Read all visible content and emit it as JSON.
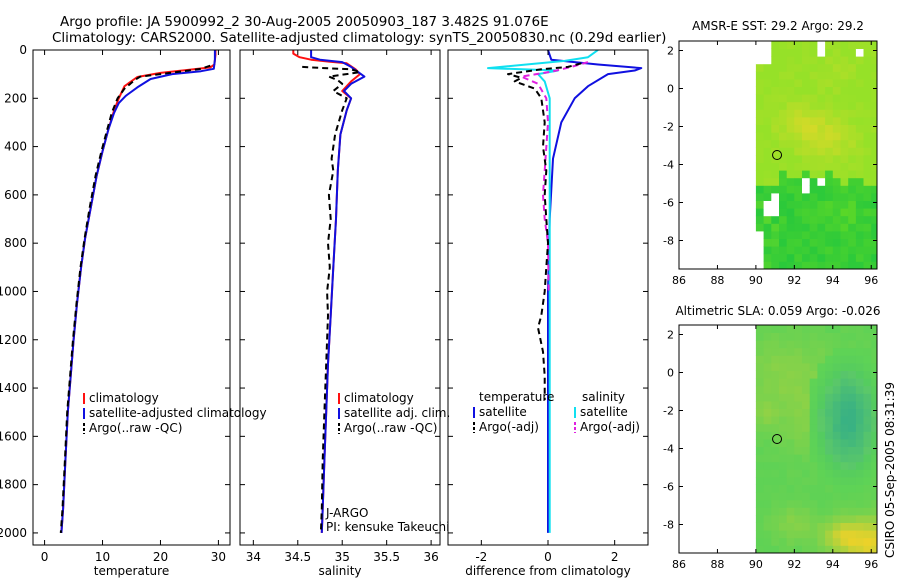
{
  "header": {
    "title_line1": "Argo profile: JA 5900992_2 30-Aug-2005 20050903_187 3.482S 91.076E",
    "title_line2": "Climatology: CARS2000. Satellite-adjusted climatology: synTS_20050830.nc (0.29d earlier)"
  },
  "footer": {
    "credit": "CSIRO 05-Sep-2005 08:31:39"
  },
  "colors": {
    "red": "#ff1010",
    "blue": "#1010e0",
    "black": "#000000",
    "cyan": "#10e0f0",
    "magenta": "#e020e0"
  },
  "chart_data": [
    {
      "id": "temperature",
      "type": "line",
      "xlabel": "temperature",
      "xlim": [
        -2,
        32
      ],
      "ylim": [
        2050,
        0
      ],
      "xticks": [
        0,
        10,
        20,
        30
      ],
      "yticks": [
        0,
        200,
        400,
        600,
        800,
        1000,
        1200,
        1400,
        1600,
        1800,
        2000
      ],
      "legend": [
        "climatology",
        "satellite-adjusted climatology",
        "Argo(..raw -QC)"
      ],
      "series": [
        {
          "name": "climatology",
          "color": "#ff1010",
          "dash": false,
          "points": [
            [
              29.5,
              0
            ],
            [
              29.5,
              20
            ],
            [
              29.3,
              60
            ],
            [
              28.6,
              72
            ],
            [
              25,
              82
            ],
            [
              20,
              95
            ],
            [
              16,
              112
            ],
            [
              13.8,
              150
            ],
            [
              12.8,
              200
            ],
            [
              12.0,
              250
            ],
            [
              11.0,
              330
            ],
            [
              10.0,
              420
            ],
            [
              9.0,
              520
            ],
            [
              8.0,
              650
            ],
            [
              7.0,
              780
            ],
            [
              6.3,
              900
            ],
            [
              5.6,
              1050
            ],
            [
              5.0,
              1200
            ],
            [
              4.5,
              1350
            ],
            [
              4.0,
              1500
            ],
            [
              3.6,
              1700
            ],
            [
              3.2,
              1900
            ],
            [
              2.9,
              2000
            ]
          ]
        },
        {
          "name": "satellite-adjusted climatology",
          "color": "#1010e0",
          "dash": false,
          "points": [
            [
              29.4,
              0
            ],
            [
              29.4,
              40
            ],
            [
              29.2,
              78
            ],
            [
              27,
              88
            ],
            [
              22,
              100
            ],
            [
              18.3,
              120
            ],
            [
              16.0,
              155
            ],
            [
              14.0,
              190
            ],
            [
              12.8,
              220
            ],
            [
              12.0,
              260
            ],
            [
              11.0,
              330
            ],
            [
              10.0,
              420
            ],
            [
              9.0,
              520
            ],
            [
              8.0,
              650
            ],
            [
              7.0,
              780
            ],
            [
              6.3,
              900
            ],
            [
              5.6,
              1050
            ],
            [
              5.0,
              1200
            ],
            [
              4.5,
              1350
            ],
            [
              4.0,
              1500
            ],
            [
              3.6,
              1700
            ],
            [
              3.2,
              1900
            ],
            [
              2.9,
              2000
            ]
          ]
        },
        {
          "name": "Argo(..raw -QC)",
          "color": "#000000",
          "dash": true,
          "points": [
            [
              28.6,
              65
            ],
            [
              27,
              78
            ],
            [
              24,
              88
            ],
            [
              20,
              100
            ],
            [
              16.5,
              110
            ],
            [
              15.5,
              125
            ],
            [
              14.8,
              140
            ],
            [
              13.8,
              160
            ],
            [
              12.6,
              200
            ],
            [
              11.6,
              260
            ],
            [
              10.8,
              330
            ],
            [
              9.8,
              420
            ],
            [
              8.8,
              520
            ],
            [
              7.8,
              650
            ],
            [
              6.9,
              780
            ],
            [
              6.2,
              900
            ],
            [
              5.5,
              1050
            ],
            [
              4.9,
              1200
            ],
            [
              4.4,
              1350
            ],
            [
              3.9,
              1500
            ],
            [
              3.5,
              1700
            ],
            [
              3.1,
              1900
            ],
            [
              2.8,
              2000
            ]
          ]
        }
      ]
    },
    {
      "id": "salinity",
      "type": "line",
      "xlabel": "salinity",
      "xlim": [
        33.85,
        36.1
      ],
      "ylim": [
        2050,
        0
      ],
      "xticks": [
        34,
        34.5,
        35,
        35.5,
        36
      ],
      "legend": [
        "climatology",
        "satellite adj. clim.",
        "Argo(..raw -QC)"
      ],
      "annotation": [
        "J-ARGO",
        "PI: kensuke Takeuchi"
      ],
      "series": [
        {
          "name": "climatology",
          "color": "#ff1010",
          "dash": false,
          "points": [
            [
              34.45,
              0
            ],
            [
              34.45,
              15
            ],
            [
              34.52,
              30
            ],
            [
              34.65,
              40
            ],
            [
              34.85,
              48
            ],
            [
              35.05,
              55
            ],
            [
              35.15,
              80
            ],
            [
              35.2,
              100
            ],
            [
              35.1,
              130
            ],
            [
              35.0,
              170
            ],
            [
              35.1,
              200
            ],
            [
              35.05,
              250
            ],
            [
              34.98,
              350
            ],
            [
              34.95,
              500
            ],
            [
              34.93,
              700
            ],
            [
              34.9,
              900
            ],
            [
              34.87,
              1100
            ],
            [
              34.84,
              1300
            ],
            [
              34.82,
              1500
            ],
            [
              34.8,
              1700
            ],
            [
              34.78,
              1900
            ],
            [
              34.77,
              2000
            ]
          ]
        },
        {
          "name": "satellite adj. clim.",
          "color": "#1010e0",
          "dash": false,
          "points": [
            [
              34.65,
              0
            ],
            [
              34.65,
              30
            ],
            [
              34.75,
              40
            ],
            [
              35.0,
              50
            ],
            [
              35.1,
              70
            ],
            [
              35.25,
              110
            ],
            [
              35.1,
              140
            ],
            [
              35.02,
              170
            ],
            [
              35.1,
              200
            ],
            [
              35.05,
              250
            ],
            [
              34.98,
              350
            ],
            [
              34.95,
              500
            ],
            [
              34.93,
              700
            ],
            [
              34.9,
              900
            ],
            [
              34.87,
              1100
            ],
            [
              34.84,
              1300
            ],
            [
              34.82,
              1500
            ],
            [
              34.8,
              1700
            ],
            [
              34.78,
              1900
            ],
            [
              34.77,
              2000
            ]
          ]
        },
        {
          "name": "Argo(..raw -QC)",
          "color": "#000000",
          "dash": true,
          "points": [
            [
              34.55,
              70
            ],
            [
              34.8,
              75
            ],
            [
              35.1,
              80
            ],
            [
              35.2,
              92
            ],
            [
              34.85,
              110
            ],
            [
              34.95,
              125
            ],
            [
              35.0,
              140
            ],
            [
              34.9,
              170
            ],
            [
              35.05,
              200
            ],
            [
              35.0,
              250
            ],
            [
              34.92,
              350
            ],
            [
              34.88,
              450
            ],
            [
              34.9,
              500
            ],
            [
              34.85,
              600
            ],
            [
              34.87,
              700
            ],
            [
              34.84,
              800
            ],
            [
              34.86,
              900
            ],
            [
              34.83,
              1000
            ],
            [
              34.84,
              1100
            ],
            [
              34.82,
              1300
            ],
            [
              34.8,
              1500
            ],
            [
              34.78,
              1700
            ],
            [
              34.77,
              1900
            ],
            [
              34.76,
              2000
            ]
          ]
        }
      ]
    },
    {
      "id": "difference",
      "type": "line",
      "xlabel": "difference from climatology",
      "xlim": [
        -3.0,
        3.0
      ],
      "ylim": [
        2050,
        0
      ],
      "xticks": [
        -2,
        0,
        2
      ],
      "legend_headers": [
        "temperature",
        "salinity"
      ],
      "legend": [
        "satellite",
        "Argo(-adj)",
        "satellite",
        "Argo(-adj)"
      ],
      "series": [
        {
          "name": "temperature satellite",
          "color": "#1010e0",
          "dash": false,
          "points": [
            [
              0,
              0
            ],
            [
              0.1,
              40
            ],
            [
              1.5,
              60
            ],
            [
              2.8,
              75
            ],
            [
              2.6,
              85
            ],
            [
              1.8,
              100
            ],
            [
              1.2,
              150
            ],
            [
              0.8,
              200
            ],
            [
              0.4,
              300
            ],
            [
              0.15,
              450
            ],
            [
              0.05,
              700
            ],
            [
              0,
              1000
            ],
            [
              0,
              2000
            ]
          ]
        },
        {
          "name": "salinity satellite",
          "color": "#10e0f0",
          "dash": false,
          "points": [
            [
              1.5,
              0
            ],
            [
              1.2,
              30
            ],
            [
              0.5,
              45
            ],
            [
              -1.8,
              75
            ],
            [
              0.3,
              85
            ],
            [
              -0.3,
              100
            ],
            [
              -0.1,
              130
            ],
            [
              0.05,
              200
            ],
            [
              0.05,
              500
            ],
            [
              0.05,
              1000
            ],
            [
              0.05,
              1600
            ],
            [
              0.05,
              2000
            ]
          ]
        },
        {
          "name": "salinity Argo(-adj)",
          "color": "#e020e0",
          "dash": true,
          "points": [
            [
              1.2,
              50
            ],
            [
              0.7,
              70
            ],
            [
              0.1,
              90
            ],
            [
              -0.8,
              110
            ],
            [
              -0.3,
              140
            ],
            [
              -0.05,
              200
            ],
            [
              0,
              300
            ],
            [
              -0.1,
              500
            ],
            [
              -0.15,
              600
            ],
            [
              -0.1,
              700
            ],
            [
              0,
              800
            ],
            [
              0.02,
              1000
            ]
          ]
        },
        {
          "name": "temperature Argo(-adj)",
          "color": "#000000",
          "dash": true,
          "points": [
            [
              1.0,
              55
            ],
            [
              0.6,
              70
            ],
            [
              -0.2,
              80
            ],
            [
              -1.2,
              100
            ],
            [
              -0.8,
              115
            ],
            [
              -1.0,
              130
            ],
            [
              -0.4,
              160
            ],
            [
              -0.2,
              200
            ],
            [
              -0.1,
              300
            ],
            [
              -0.15,
              400
            ],
            [
              -0.05,
              500
            ],
            [
              -0.1,
              600
            ],
            [
              -0.05,
              700
            ],
            [
              0,
              800
            ],
            [
              -0.05,
              900
            ],
            [
              -0.1,
              1000
            ],
            [
              -0.2,
              1100
            ],
            [
              -0.3,
              1150
            ],
            [
              -0.15,
              1250
            ],
            [
              -0.1,
              1350
            ],
            [
              -0.1,
              1450
            ]
          ]
        }
      ]
    },
    {
      "id": "sst_map",
      "type": "heatmap",
      "title": "AMSR-E SST: 29.2 Argo: 29.2",
      "xlim": [
        86,
        96.3
      ],
      "ylim": [
        -9.5,
        2.5
      ],
      "xticks": [
        86,
        88,
        90,
        92,
        94,
        96
      ],
      "yticks": [
        -8,
        -6,
        -4,
        -2,
        0,
        2
      ],
      "data_lon_min": 90,
      "marker": [
        91.1,
        -3.5
      ]
    },
    {
      "id": "sla_map",
      "type": "heatmap",
      "title": "Altimetric SLA: 0.059 Argo: -0.026",
      "xlim": [
        86,
        96.3
      ],
      "ylim": [
        -9.5,
        2.5
      ],
      "xticks": [
        86,
        88,
        90,
        92,
        94,
        96
      ],
      "yticks": [
        -8,
        -6,
        -4,
        -2,
        0,
        2
      ],
      "data_lon_min": 90,
      "marker": [
        91.1,
        -3.5
      ]
    }
  ]
}
